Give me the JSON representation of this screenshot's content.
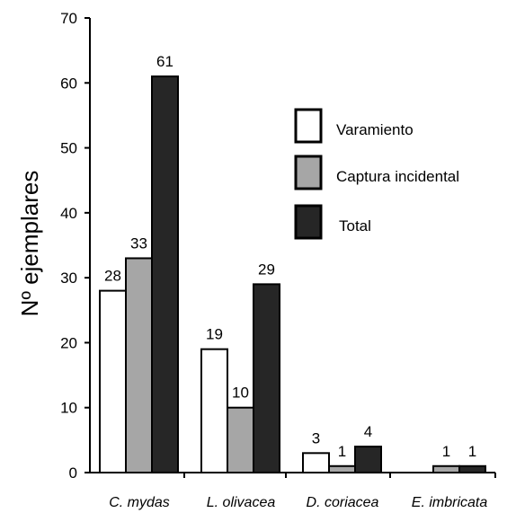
{
  "chart_data": {
    "type": "bar",
    "title": "",
    "xlabel": "",
    "ylabel": "Nº ejemplares",
    "ylim": [
      0,
      70
    ],
    "yticks": [
      0,
      10,
      20,
      30,
      40,
      50,
      60,
      70
    ],
    "grid": false,
    "legend_position": "right",
    "categories": [
      "C. mydas",
      "L. olivacea",
      "D. coriacea",
      "E. imbricata"
    ],
    "series": [
      {
        "name": "Varamiento",
        "color": "#ffffff",
        "values": [
          28,
          19,
          3,
          0
        ],
        "labels": [
          "28",
          "19",
          "3",
          ""
        ]
      },
      {
        "name": "Captura incidental",
        "color": "#a6a6a6",
        "values": [
          33,
          10,
          1,
          1
        ],
        "labels": [
          "33",
          "10",
          "1",
          "1"
        ]
      },
      {
        "name": "Total",
        "color": "#262626",
        "values": [
          61,
          29,
          4,
          1
        ],
        "labels": [
          "61",
          "29",
          "4",
          "1"
        ]
      }
    ]
  }
}
